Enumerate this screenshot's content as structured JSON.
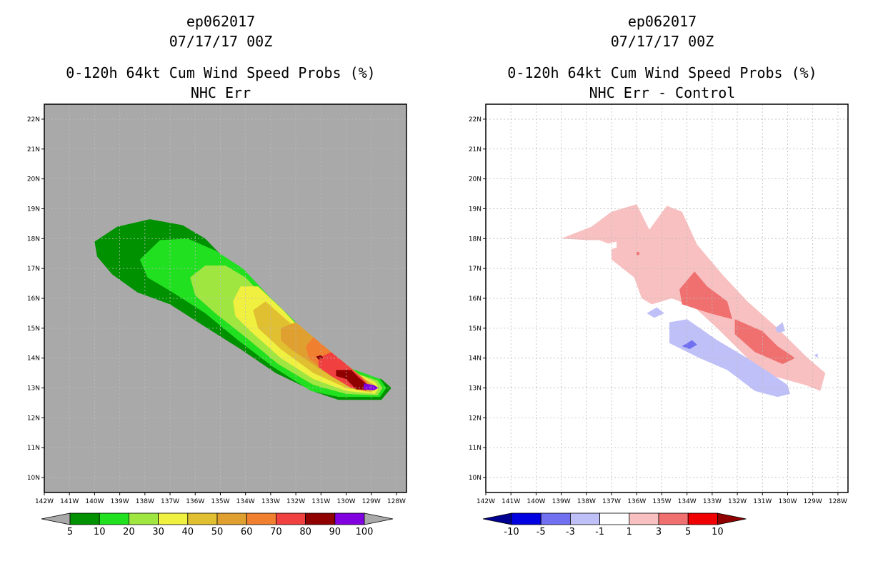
{
  "charts": [
    {
      "storm_id": "ep062017",
      "datetime": "07/17/17 00Z",
      "product": "0-120h 64kt Cum Wind Speed Probs (%)",
      "subtitle": "NHC Err"
    },
    {
      "storm_id": "ep062017",
      "datetime": "07/17/17 00Z",
      "product": "0-120h 64kt Cum Wind Speed Probs (%)",
      "subtitle": "NHC Err - Control"
    }
  ],
  "chart_data": [
    {
      "type": "filled-contour-map",
      "title": "0-120h 64kt Cum Wind Speed Probs (%)",
      "subtitle": "NHC Err",
      "xlim": [
        -142,
        -127.6
      ],
      "ylim": [
        9.5,
        22.5
      ],
      "x_ticks": [
        "142W",
        "141W",
        "140W",
        "139W",
        "138W",
        "137W",
        "136W",
        "135W",
        "134W",
        "133W",
        "132W",
        "131W",
        "130W",
        "129W",
        "128W"
      ],
      "y_ticks": [
        "10N",
        "11N",
        "12N",
        "13N",
        "14N",
        "15N",
        "16N",
        "17N",
        "18N",
        "19N",
        "20N",
        "21N",
        "22N"
      ],
      "background": "#a9a9a9",
      "grid": true,
      "colorbar": {
        "labels": [
          "5",
          "10",
          "20",
          "30",
          "40",
          "50",
          "60",
          "70",
          "80",
          "90",
          "100"
        ],
        "colors": [
          "#009100",
          "#20e020",
          "#a0e640",
          "#f0f040",
          "#e0c030",
          "#e0a030",
          "#f08030",
          "#f04040",
          "#900000",
          "#8000e0"
        ],
        "left_arrow_color": "#a9a9a9",
        "right_arrow_color": "#a9a9a9"
      },
      "contours": [
        {
          "level": 5,
          "color": "#009100",
          "points": [
            [
              -140,
              17.9
            ],
            [
              -139.1,
              18.4
            ],
            [
              -137.8,
              18.65
            ],
            [
              -136.5,
              18.45
            ],
            [
              -135.6,
              18.0
            ],
            [
              -134.8,
              17.3
            ],
            [
              -133.8,
              16.4
            ],
            [
              -132.8,
              15.6
            ],
            [
              -131.6,
              14.7
            ],
            [
              -130.2,
              13.7
            ],
            [
              -129.6,
              13.4
            ],
            [
              -128.6,
              13.3
            ],
            [
              -128.2,
              13.0
            ],
            [
              -128.6,
              12.6
            ],
            [
              -130.3,
              12.6
            ],
            [
              -131.2,
              12.85
            ],
            [
              -132.8,
              13.5
            ],
            [
              -134.2,
              14.3
            ],
            [
              -135.7,
              15.1
            ],
            [
              -137.0,
              15.8
            ],
            [
              -138.3,
              16.2
            ],
            [
              -139.3,
              16.8
            ],
            [
              -139.9,
              17.4
            ]
          ]
        },
        {
          "level": 10,
          "color": "#20e020",
          "points": [
            [
              -138.2,
              17.3
            ],
            [
              -137.4,
              17.95
            ],
            [
              -136.3,
              18.0
            ],
            [
              -135.2,
              17.6
            ],
            [
              -134.1,
              17.0
            ],
            [
              -133.1,
              16.1
            ],
            [
              -132.0,
              15.2
            ],
            [
              -130.8,
              14.3
            ],
            [
              -129.8,
              13.65
            ],
            [
              -128.65,
              13.3
            ],
            [
              -128.4,
              13.0
            ],
            [
              -128.65,
              12.7
            ],
            [
              -130.3,
              12.7
            ],
            [
              -131.4,
              12.9
            ],
            [
              -132.9,
              13.7
            ],
            [
              -134.3,
              14.6
            ],
            [
              -135.6,
              15.5
            ],
            [
              -136.9,
              16.2
            ],
            [
              -137.9,
              16.7
            ]
          ]
        },
        {
          "level": 20,
          "color": "#a0e640",
          "points": [
            [
              -136.2,
              16.7
            ],
            [
              -135.6,
              17.1
            ],
            [
              -134.8,
              17.1
            ],
            [
              -134.0,
              16.7
            ],
            [
              -133.1,
              15.9
            ],
            [
              -132.0,
              15.0
            ],
            [
              -130.8,
              14.15
            ],
            [
              -129.8,
              13.55
            ],
            [
              -128.75,
              13.25
            ],
            [
              -128.55,
              13.0
            ],
            [
              -128.75,
              12.75
            ],
            [
              -130.0,
              12.8
            ],
            [
              -131.3,
              13.1
            ],
            [
              -132.7,
              13.8
            ],
            [
              -134.0,
              14.7
            ],
            [
              -135.2,
              15.5
            ],
            [
              -136.0,
              16.1
            ]
          ]
        },
        {
          "level": 30,
          "color": "#f0f040",
          "points": [
            [
              -134.5,
              15.9
            ],
            [
              -134.2,
              16.4
            ],
            [
              -133.5,
              16.4
            ],
            [
              -132.5,
              15.6
            ],
            [
              -131.6,
              14.8
            ],
            [
              -130.5,
              14.0
            ],
            [
              -129.6,
              13.5
            ],
            [
              -128.85,
              13.2
            ],
            [
              -128.7,
              13.0
            ],
            [
              -128.85,
              12.8
            ],
            [
              -130.0,
              12.9
            ],
            [
              -131.3,
              13.3
            ],
            [
              -132.6,
              14.0
            ],
            [
              -133.8,
              14.9
            ],
            [
              -134.4,
              15.4
            ]
          ]
        },
        {
          "level": 40,
          "color": "#e0c030",
          "points": [
            [
              -133.7,
              15.6
            ],
            [
              -133.2,
              15.9
            ],
            [
              -132.4,
              15.3
            ],
            [
              -131.4,
              14.6
            ],
            [
              -130.4,
              13.9
            ],
            [
              -129.5,
              13.4
            ],
            [
              -128.95,
              13.15
            ],
            [
              -128.85,
              13.0
            ],
            [
              -129.0,
              12.85
            ],
            [
              -130.0,
              13.0
            ],
            [
              -131.3,
              13.5
            ],
            [
              -132.6,
              14.3
            ],
            [
              -133.5,
              15.0
            ]
          ]
        },
        {
          "level": 50,
          "color": "#e0a030",
          "points": [
            [
              -132.6,
              15.0
            ],
            [
              -132.0,
              15.2
            ],
            [
              -131.3,
              14.7
            ],
            [
              -130.3,
              14.0
            ],
            [
              -129.4,
              13.4
            ],
            [
              -129.0,
              13.1
            ],
            [
              -129.0,
              12.9
            ],
            [
              -129.8,
              13.05
            ],
            [
              -131.0,
              13.6
            ],
            [
              -132.2,
              14.3
            ],
            [
              -132.6,
              14.6
            ]
          ]
        },
        {
          "level": 60,
          "color": "#f08030",
          "points": [
            [
              -131.6,
              14.4
            ],
            [
              -131.3,
              14.7
            ],
            [
              -130.6,
              14.2
            ],
            [
              -129.8,
              13.6
            ],
            [
              -129.2,
              13.25
            ],
            [
              -129.1,
              13.0
            ],
            [
              -129.7,
              13.0
            ],
            [
              -130.7,
              13.5
            ],
            [
              -131.5,
              14.0
            ]
          ]
        },
        {
          "level": 70,
          "color": "#f04040",
          "points": [
            [
              -131.1,
              14.0
            ],
            [
              -130.6,
              14.2
            ],
            [
              -130.0,
              13.8
            ],
            [
              -129.4,
              13.35
            ],
            [
              -129.15,
              13.1
            ],
            [
              -129.2,
              12.9
            ],
            [
              -129.8,
              13.0
            ],
            [
              -130.6,
              13.4
            ],
            [
              -131.1,
              13.7
            ]
          ]
        },
        {
          "level": 80,
          "color": "#900000",
          "points": [
            [
              -130.4,
              13.6
            ],
            [
              -129.8,
              13.6
            ],
            [
              -129.5,
              13.35
            ],
            [
              -129.2,
              13.15
            ],
            [
              -129.2,
              12.95
            ],
            [
              -129.6,
              12.95
            ],
            [
              -130.0,
              13.3
            ],
            [
              -130.4,
              13.4
            ]
          ]
        },
        {
          "level": 90,
          "color": "#8000e0",
          "points": [
            [
              -129.3,
              13.15
            ],
            [
              -128.9,
              13.1
            ],
            [
              -128.7,
              13.0
            ],
            [
              -128.9,
              12.92
            ],
            [
              -129.3,
              12.95
            ]
          ]
        },
        {
          "level": 80,
          "color": "#900000",
          "points": [
            [
              -131.2,
              14.05
            ],
            [
              -131.0,
              14.1
            ],
            [
              -130.9,
              14.0
            ],
            [
              -131.1,
              13.95
            ]
          ]
        }
      ]
    },
    {
      "type": "filled-contour-map",
      "title": "0-120h 64kt Cum Wind Speed Probs (%)",
      "subtitle": "NHC Err - Control",
      "xlim": [
        -142,
        -127.6
      ],
      "ylim": [
        9.5,
        22.5
      ],
      "x_ticks": [
        "142W",
        "141W",
        "140W",
        "139W",
        "138W",
        "137W",
        "136W",
        "135W",
        "134W",
        "133W",
        "132W",
        "131W",
        "130W",
        "129W",
        "128W"
      ],
      "y_ticks": [
        "10N",
        "11N",
        "12N",
        "13N",
        "14N",
        "15N",
        "16N",
        "17N",
        "18N",
        "19N",
        "20N",
        "21N",
        "22N"
      ],
      "background": "#ffffff",
      "grid": true,
      "colorbar": {
        "labels": [
          "-10",
          "-5",
          "-3",
          "-1",
          "1",
          "3",
          "5",
          "10"
        ],
        "colors": [
          "#0000e0",
          "#7070f0",
          "#c0c0f8",
          "#ffffff",
          "#f8c0c0",
          "#f07070",
          "#f00000"
        ],
        "left_arrow_color": "#000090",
        "right_arrow_color": "#900000"
      },
      "contours": [
        {
          "level": 1,
          "color": "#f8c0c0",
          "points": [
            [
              -139.0,
              18.0
            ],
            [
              -137.8,
              18.4
            ],
            [
              -137.0,
              18.9
            ],
            [
              -136.0,
              19.15
            ],
            [
              -135.5,
              18.3
            ],
            [
              -134.8,
              19.1
            ],
            [
              -134.2,
              18.9
            ],
            [
              -133.6,
              17.8
            ],
            [
              -132.6,
              16.8
            ],
            [
              -131.6,
              15.9
            ],
            [
              -130.4,
              15.0
            ],
            [
              -129.2,
              14.0
            ],
            [
              -128.5,
              13.5
            ],
            [
              -128.7,
              12.9
            ],
            [
              -129.3,
              13.1
            ],
            [
              -130.6,
              13.4
            ],
            [
              -131.6,
              14.0
            ],
            [
              -132.8,
              15.0
            ],
            [
              -133.7,
              15.7
            ],
            [
              -134.6,
              16.0
            ],
            [
              -135.4,
              15.8
            ],
            [
              -135.8,
              16.0
            ],
            [
              -136.1,
              16.7
            ],
            [
              -137.0,
              17.3
            ],
            [
              -137.0,
              17.8
            ],
            [
              -137.5,
              17.95
            ],
            [
              -138.0,
              17.95
            ]
          ]
        },
        {
          "level": 3,
          "color": "#f07070",
          "points": [
            [
              -134.3,
              16.3
            ],
            [
              -133.7,
              16.9
            ],
            [
              -133.2,
              16.4
            ],
            [
              -132.4,
              15.9
            ],
            [
              -132.2,
              15.3
            ],
            [
              -133.1,
              15.5
            ],
            [
              -134.2,
              15.8
            ]
          ]
        },
        {
          "level": 3,
          "color": "#f07070",
          "points": [
            [
              -132.1,
              15.3
            ],
            [
              -131.0,
              14.9
            ],
            [
              -130.4,
              14.4
            ],
            [
              -129.7,
              14.0
            ],
            [
              -130.2,
              13.8
            ],
            [
              -131.3,
              14.2
            ],
            [
              -132.1,
              14.8
            ]
          ]
        },
        {
          "level": -1,
          "color": "#c0c0f8",
          "points": [
            [
              -134.7,
              15.2
            ],
            [
              -134.0,
              15.3
            ],
            [
              -132.8,
              14.6
            ],
            [
              -131.6,
              14.0
            ],
            [
              -130.7,
              13.5
            ],
            [
              -130.0,
              13.1
            ],
            [
              -129.9,
              12.8
            ],
            [
              -130.4,
              12.7
            ],
            [
              -131.3,
              12.9
            ],
            [
              -132.4,
              13.6
            ],
            [
              -133.5,
              14.0
            ],
            [
              -134.7,
              14.5
            ]
          ]
        },
        {
          "level": -3,
          "color": "#7070f0",
          "points": [
            [
              -134.2,
              14.4
            ],
            [
              -133.8,
              14.6
            ],
            [
              -133.6,
              14.45
            ],
            [
              -133.9,
              14.3
            ]
          ]
        },
        {
          "level": -1,
          "color": "#c0c0f8",
          "points": [
            [
              -135.6,
              15.5
            ],
            [
              -135.2,
              15.7
            ],
            [
              -134.9,
              15.5
            ],
            [
              -135.3,
              15.35
            ]
          ]
        },
        {
          "level": -1,
          "color": "#c0c0f8",
          "points": [
            [
              -130.5,
              15.0
            ],
            [
              -130.2,
              15.2
            ],
            [
              -130.1,
              14.9
            ],
            [
              -130.4,
              14.85
            ]
          ]
        },
        {
          "level": -1,
          "color": "#c0c0f8",
          "points": [
            [
              -128.95,
              14.1
            ],
            [
              -128.8,
              14.15
            ],
            [
              -128.8,
              14.0
            ]
          ]
        },
        {
          "level": 1,
          "color": "#ffffff",
          "points": [
            [
              -137.1,
              17.85
            ],
            [
              -136.8,
              17.9
            ],
            [
              -136.8,
              17.7
            ],
            [
              -137.0,
              17.65
            ]
          ]
        },
        {
          "level": 3,
          "color": "#f07070",
          "points": [
            [
              -136.0,
              17.55
            ],
            [
              -135.9,
              17.55
            ],
            [
              -135.9,
              17.45
            ],
            [
              -136.0,
              17.45
            ]
          ]
        }
      ]
    }
  ]
}
